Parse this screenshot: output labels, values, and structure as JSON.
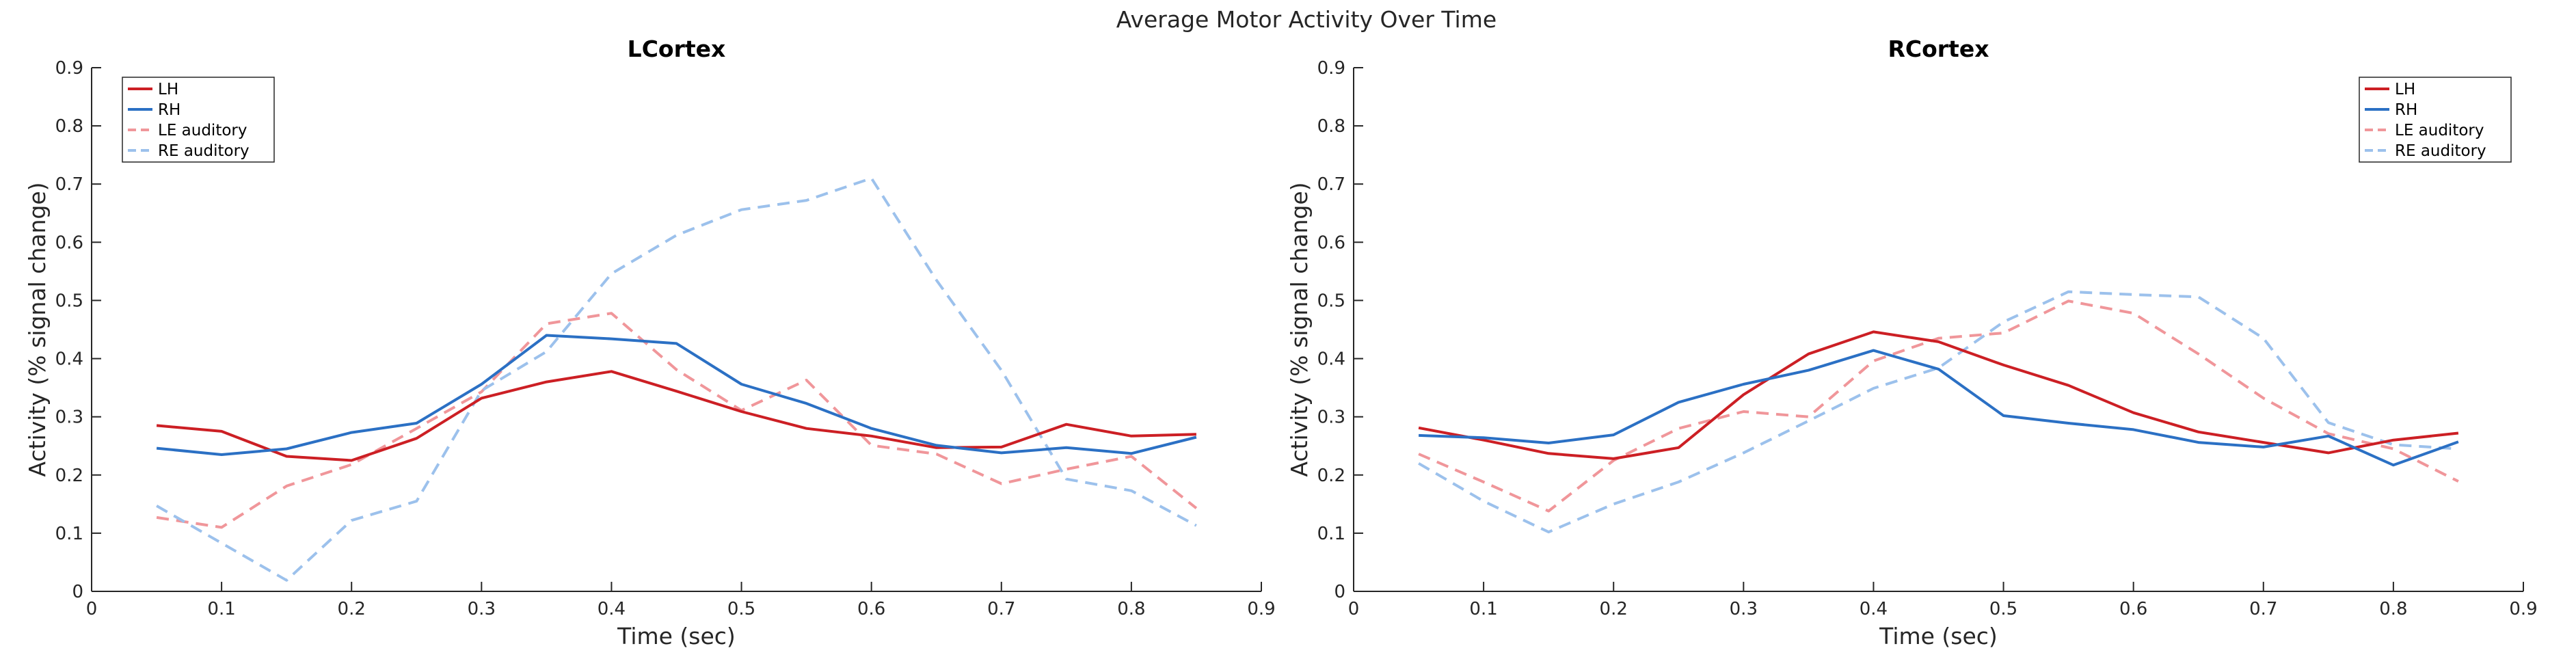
{
  "figure": {
    "title": "Average Motor Activity Over Time"
  },
  "chart_data": [
    {
      "type": "line",
      "title": "LCortex",
      "xlabel": "Time (sec)",
      "ylabel": "Activity (% signal change)",
      "xlim": [
        0,
        0.9
      ],
      "ylim": [
        0,
        0.9
      ],
      "xticks": [
        "0",
        "0.1",
        "0.2",
        "0.3",
        "0.4",
        "0.5",
        "0.6",
        "0.7",
        "0.8",
        "0.9"
      ],
      "yticks": [
        "0",
        "0.1",
        "0.2",
        "0.3",
        "0.4",
        "0.5",
        "0.6",
        "0.7",
        "0.8",
        "0.9"
      ],
      "grid": false,
      "legend_position": "top-left",
      "x": [
        0.05,
        0.1,
        0.15,
        0.2,
        0.25,
        0.3,
        0.35,
        0.4,
        0.45,
        0.5,
        0.55,
        0.6,
        0.65,
        0.7,
        0.75,
        0.8,
        0.85
      ],
      "series": [
        {
          "name": "LH",
          "color": "#cc1f24",
          "dashed": false,
          "values": [
            0.285,
            0.275,
            0.232,
            0.225,
            0.263,
            0.332,
            0.36,
            0.378,
            0.344,
            0.309,
            0.28,
            0.267,
            0.247,
            0.248,
            0.287,
            0.267,
            0.27
          ]
        },
        {
          "name": "RH",
          "color": "#2b70c4",
          "dashed": false,
          "values": [
            0.246,
            0.235,
            0.245,
            0.273,
            0.289,
            0.356,
            0.44,
            0.434,
            0.426,
            0.356,
            0.323,
            0.28,
            0.251,
            0.238,
            0.247,
            0.237,
            0.265
          ]
        },
        {
          "name": "LE auditory",
          "color": "#f0969a",
          "dashed": true,
          "values": [
            0.127,
            0.11,
            0.181,
            0.218,
            0.28,
            0.343,
            0.46,
            0.478,
            0.381,
            0.311,
            0.363,
            0.251,
            0.236,
            0.185,
            0.21,
            0.232,
            0.143
          ]
        },
        {
          "name": "RE auditory",
          "color": "#9cc1ec",
          "dashed": true,
          "values": [
            0.147,
            0.083,
            0.019,
            0.122,
            0.155,
            0.345,
            0.412,
            0.546,
            0.612,
            0.656,
            0.672,
            0.71,
            0.535,
            0.38,
            0.193,
            0.173,
            0.113
          ]
        }
      ]
    },
    {
      "type": "line",
      "title": "RCortex",
      "xlabel": "Time (sec)",
      "ylabel": "Activity (% signal change)",
      "xlim": [
        0,
        0.9
      ],
      "ylim": [
        0,
        0.9
      ],
      "xticks": [
        "0",
        "0.1",
        "0.2",
        "0.3",
        "0.4",
        "0.5",
        "0.6",
        "0.7",
        "0.8",
        "0.9"
      ],
      "yticks": [
        "0",
        "0.1",
        "0.2",
        "0.3",
        "0.4",
        "0.5",
        "0.6",
        "0.7",
        "0.8",
        "0.9"
      ],
      "grid": false,
      "legend_position": "top-right",
      "x": [
        0.05,
        0.1,
        0.15,
        0.2,
        0.25,
        0.3,
        0.35,
        0.4,
        0.45,
        0.5,
        0.55,
        0.6,
        0.65,
        0.7,
        0.75,
        0.8,
        0.85
      ],
      "series": [
        {
          "name": "LH",
          "color": "#cc1f24",
          "dashed": false,
          "values": [
            0.281,
            0.26,
            0.237,
            0.228,
            0.247,
            0.338,
            0.408,
            0.446,
            0.429,
            0.389,
            0.354,
            0.307,
            0.274,
            0.256,
            0.238,
            0.26,
            0.272
          ]
        },
        {
          "name": "RH",
          "color": "#2b70c4",
          "dashed": false,
          "values": [
            0.268,
            0.264,
            0.255,
            0.269,
            0.325,
            0.356,
            0.38,
            0.414,
            0.382,
            0.302,
            0.289,
            0.278,
            0.256,
            0.248,
            0.267,
            0.217,
            0.257
          ]
        },
        {
          "name": "LE auditory",
          "color": "#f0969a",
          "dashed": true,
          "values": [
            0.236,
            0.188,
            0.138,
            0.225,
            0.28,
            0.309,
            0.3,
            0.396,
            0.435,
            0.444,
            0.499,
            0.478,
            0.408,
            0.332,
            0.271,
            0.245,
            0.189
          ]
        },
        {
          "name": "RE auditory",
          "color": "#9cc1ec",
          "dashed": true,
          "values": [
            0.22,
            0.155,
            0.102,
            0.15,
            0.188,
            0.238,
            0.293,
            0.349,
            0.384,
            0.463,
            0.515,
            0.51,
            0.506,
            0.435,
            0.29,
            0.252,
            0.245
          ]
        }
      ]
    }
  ]
}
